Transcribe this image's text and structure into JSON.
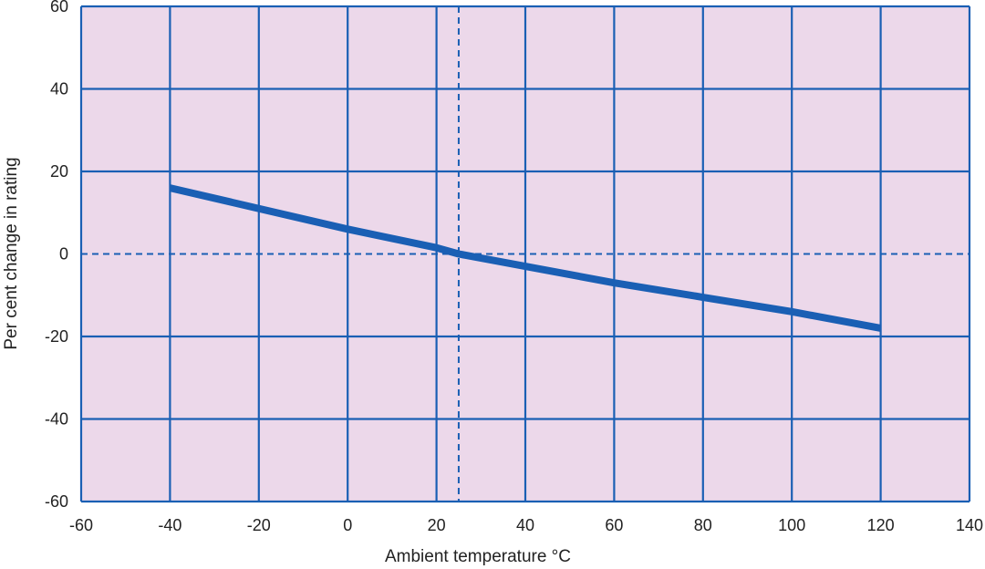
{
  "chart_data": {
    "type": "line",
    "title": "",
    "xlabel": "Ambient temperature °C",
    "ylabel": "Per cent change in rating",
    "xlim": [
      -60,
      140
    ],
    "ylim": [
      -60,
      60
    ],
    "x_ticks": [
      -60,
      -40,
      -20,
      0,
      20,
      40,
      60,
      80,
      100,
      120,
      140
    ],
    "y_ticks": [
      60,
      40,
      20,
      0,
      -20,
      -40,
      -60
    ],
    "grid": true,
    "reference_lines": {
      "x": 25,
      "y": 0,
      "style": "dashed"
    },
    "series": [
      {
        "x": [
          -40,
          -20,
          0,
          20,
          25,
          40,
          60,
          80,
          100,
          120
        ],
        "y": [
          16,
          11,
          6,
          1.5,
          0,
          -3,
          -7,
          -10.5,
          -14,
          -18
        ]
      }
    ],
    "colors": {
      "plot_background": "#ecd8ea",
      "grid": "#1a5fb4",
      "line": "#1a5fb4",
      "text": "#222222"
    }
  }
}
